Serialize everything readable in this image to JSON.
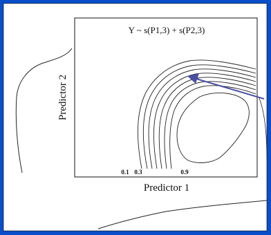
{
  "figure": {
    "formula": "Y ~ s(P1,3) + s(P2,3)",
    "x_axis_label": "Predictor 1",
    "y_axis_label": "Predictor 2",
    "contour_level_labels": [
      "0.1",
      "0.3",
      "0.9"
    ]
  },
  "colors": {
    "slide_background": "#0a4ec9",
    "paper": "#ffffff",
    "ink": "#111111",
    "arrow": "#4a4fa3"
  }
}
